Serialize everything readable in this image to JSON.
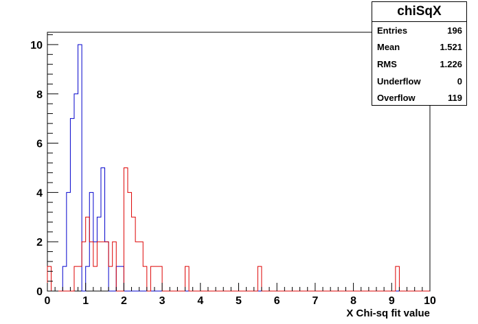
{
  "chart_data": {
    "type": "histogram",
    "title": "",
    "xlabel": "X Chi-sq fit value",
    "ylabel": "",
    "xlim": [
      0,
      10
    ],
    "ylim": [
      0,
      10.5
    ],
    "bin_width": 0.1,
    "xticks": [
      "0",
      "1",
      "2",
      "3",
      "4",
      "5",
      "6",
      "7",
      "8",
      "9",
      "10"
    ],
    "yticks": [
      "0",
      "2",
      "4",
      "6",
      "8",
      "10"
    ],
    "colors": {
      "blue": "#0000cc",
      "red": "#dd0000"
    },
    "series": [
      {
        "color": "#0000cc",
        "values": [
          0,
          0,
          0,
          0,
          1,
          4,
          7,
          8,
          10,
          0,
          1,
          4,
          2,
          3,
          5,
          2,
          0,
          0,
          1,
          1,
          0,
          0,
          0,
          0,
          0,
          0,
          0,
          0,
          0,
          0,
          0,
          0,
          0,
          0,
          0,
          0,
          0,
          0,
          0,
          0,
          0,
          0,
          0,
          0,
          0,
          0,
          0,
          0,
          0,
          0,
          0,
          0,
          0,
          0,
          0,
          0,
          0,
          0,
          0,
          0,
          0,
          0,
          0,
          0,
          0,
          0,
          0,
          0,
          0,
          0,
          0,
          0,
          0,
          0,
          0,
          0,
          0,
          0,
          0,
          0,
          0,
          0,
          0,
          0,
          0,
          0,
          0,
          0,
          0,
          0,
          0,
          0,
          0,
          0,
          0,
          0,
          0,
          0,
          0,
          0
        ]
      },
      {
        "color": "#dd0000",
        "values": [
          1,
          0,
          0,
          0,
          0,
          0,
          0,
          1,
          1,
          2,
          3,
          2,
          1,
          2,
          2,
          2,
          1,
          2,
          0,
          0,
          5,
          4,
          3,
          2,
          2,
          1,
          0,
          1,
          1,
          1,
          0,
          0,
          0,
          0,
          0,
          0,
          1,
          0,
          0,
          0,
          0,
          0,
          0,
          0,
          0,
          0,
          0,
          0,
          0,
          0,
          0,
          0,
          0,
          0,
          0,
          1,
          0,
          0,
          0,
          0,
          0,
          0,
          0,
          0,
          0,
          0,
          0,
          0,
          0,
          0,
          0,
          0,
          0,
          0,
          0,
          0,
          0,
          0,
          0,
          0,
          0,
          0,
          0,
          0,
          0,
          0,
          0,
          0,
          0,
          0,
          0,
          1,
          0,
          0,
          0,
          0,
          0,
          0,
          0,
          0
        ]
      }
    ]
  },
  "stats": {
    "title": "chiSqX",
    "rows": [
      {
        "label": "Entries",
        "value": "196"
      },
      {
        "label": "Mean",
        "value": "1.521"
      },
      {
        "label": "RMS",
        "value": "1.226"
      },
      {
        "label": "Underflow",
        "value": "0"
      },
      {
        "label": "Overflow",
        "value": "119"
      }
    ]
  }
}
